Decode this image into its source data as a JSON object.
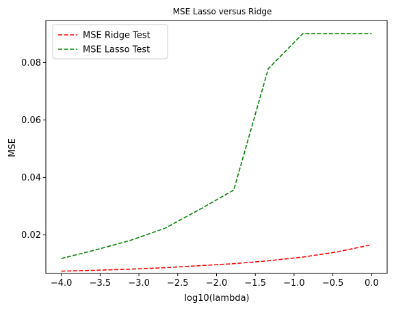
{
  "chart_data": {
    "type": "line",
    "title": "MSE Lasso versus Ridge",
    "xlabel": "log10(lambda)",
    "ylabel": "MSE",
    "xlim": [
      -4.2,
      0.2
    ],
    "ylim": [
      0.0066,
      0.0946
    ],
    "x_ticks": [
      -4.0,
      -3.5,
      -3.0,
      -2.5,
      -2.0,
      -1.5,
      -1.0,
      -0.5,
      0.0
    ],
    "x_tick_labels": [
      "−4.0",
      "−3.5",
      "−3.0",
      "−2.5",
      "−2.0",
      "−1.5",
      "−1.0",
      "−0.5",
      "0.0"
    ],
    "y_ticks": [
      0.02,
      0.04,
      0.06,
      0.08
    ],
    "y_tick_labels": [
      "0.02",
      "0.04",
      "0.06",
      "0.08"
    ],
    "grid": false,
    "legend_position": "top-left",
    "series": [
      {
        "name": "MSE Ridge Test",
        "color": "#ff0000",
        "dash": "dashed",
        "x": [
          -4.0,
          -3.556,
          -3.111,
          -2.667,
          -2.222,
          -1.778,
          -1.333,
          -0.889,
          -0.444,
          0.0
        ],
        "y": [
          0.0074,
          0.0077,
          0.0081,
          0.0086,
          0.0093,
          0.01,
          0.011,
          0.0123,
          0.0141,
          0.0166
        ]
      },
      {
        "name": "MSE Lasso Test",
        "color": "#008000",
        "dash": "dashed",
        "x": [
          -4.0,
          -3.556,
          -3.111,
          -2.667,
          -2.222,
          -1.778,
          -1.333,
          -0.889,
          -0.444,
          0.0
        ],
        "y": [
          0.0118,
          0.0148,
          0.0181,
          0.0223,
          0.0288,
          0.0356,
          0.0778,
          0.09,
          0.09,
          0.09
        ]
      }
    ]
  }
}
